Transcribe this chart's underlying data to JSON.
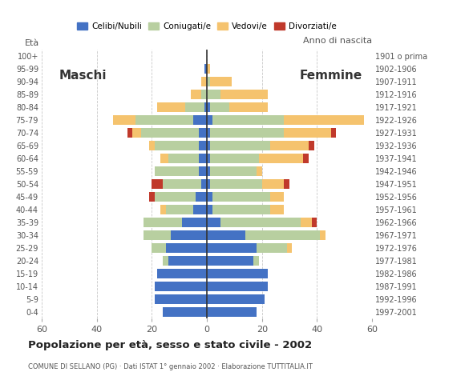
{
  "age_groups": [
    "0-4",
    "5-9",
    "10-14",
    "15-19",
    "20-24",
    "25-29",
    "30-34",
    "35-39",
    "40-44",
    "45-49",
    "50-54",
    "55-59",
    "60-64",
    "65-69",
    "70-74",
    "75-79",
    "80-84",
    "85-89",
    "90-94",
    "95-99",
    "100+"
  ],
  "birth_years": [
    "1997-2001",
    "1992-1996",
    "1987-1991",
    "1982-1986",
    "1977-1981",
    "1972-1976",
    "1967-1971",
    "1962-1966",
    "1957-1961",
    "1952-1956",
    "1947-1951",
    "1942-1946",
    "1937-1941",
    "1932-1936",
    "1927-1931",
    "1922-1926",
    "1917-1921",
    "1912-1916",
    "1907-1911",
    "1902-1906",
    "1901 o prima"
  ],
  "colors": {
    "celibe": "#4472c4",
    "coniugato": "#b8cfa0",
    "vedovo": "#f5c36e",
    "divorziato": "#c0392b"
  },
  "males": {
    "celibe": [
      16,
      19,
      19,
      18,
      14,
      15,
      13,
      9,
      5,
      4,
      2,
      3,
      3,
      3,
      3,
      5,
      1,
      0,
      0,
      1,
      0
    ],
    "coniugato": [
      0,
      0,
      0,
      0,
      2,
      5,
      10,
      14,
      10,
      15,
      14,
      16,
      11,
      16,
      21,
      21,
      7,
      2,
      0,
      0,
      0
    ],
    "vedovo": [
      0,
      0,
      0,
      0,
      0,
      0,
      0,
      0,
      2,
      0,
      0,
      0,
      3,
      2,
      3,
      8,
      10,
      4,
      2,
      0,
      0
    ],
    "divorziato": [
      0,
      0,
      0,
      0,
      0,
      0,
      0,
      0,
      0,
      2,
      4,
      0,
      0,
      0,
      2,
      0,
      0,
      0,
      0,
      0,
      0
    ]
  },
  "females": {
    "celibe": [
      18,
      21,
      22,
      22,
      17,
      18,
      14,
      5,
      2,
      2,
      1,
      1,
      1,
      1,
      1,
      2,
      1,
      0,
      0,
      0,
      0
    ],
    "coniugato": [
      0,
      0,
      0,
      0,
      2,
      11,
      27,
      29,
      21,
      21,
      19,
      17,
      18,
      22,
      27,
      26,
      7,
      5,
      1,
      0,
      0
    ],
    "vedovo": [
      0,
      0,
      0,
      0,
      0,
      2,
      2,
      4,
      5,
      5,
      8,
      2,
      16,
      14,
      17,
      29,
      14,
      17,
      8,
      1,
      0
    ],
    "divorziato": [
      0,
      0,
      0,
      0,
      0,
      0,
      0,
      2,
      0,
      0,
      2,
      0,
      2,
      2,
      2,
      0,
      0,
      0,
      0,
      0,
      0
    ]
  },
  "title": "Popolazione per età, sesso e stato civile - 2002",
  "subtitle": "COMUNE DI SELLANO (PG) · Dati ISTAT 1° gennaio 2002 · Elaborazione TUTTITALIA.IT",
  "xlabel_left": "Maschi",
  "xlabel_right": "Femmine",
  "ylabel": "Età",
  "ylabel_right": "Anno di nascita",
  "xlim": 60,
  "legend_labels": [
    "Celibi/Nubili",
    "Coniugati/e",
    "Vedovi/e",
    "Divorziati/e"
  ],
  "background_color": "#ffffff",
  "bar_height": 0.75
}
